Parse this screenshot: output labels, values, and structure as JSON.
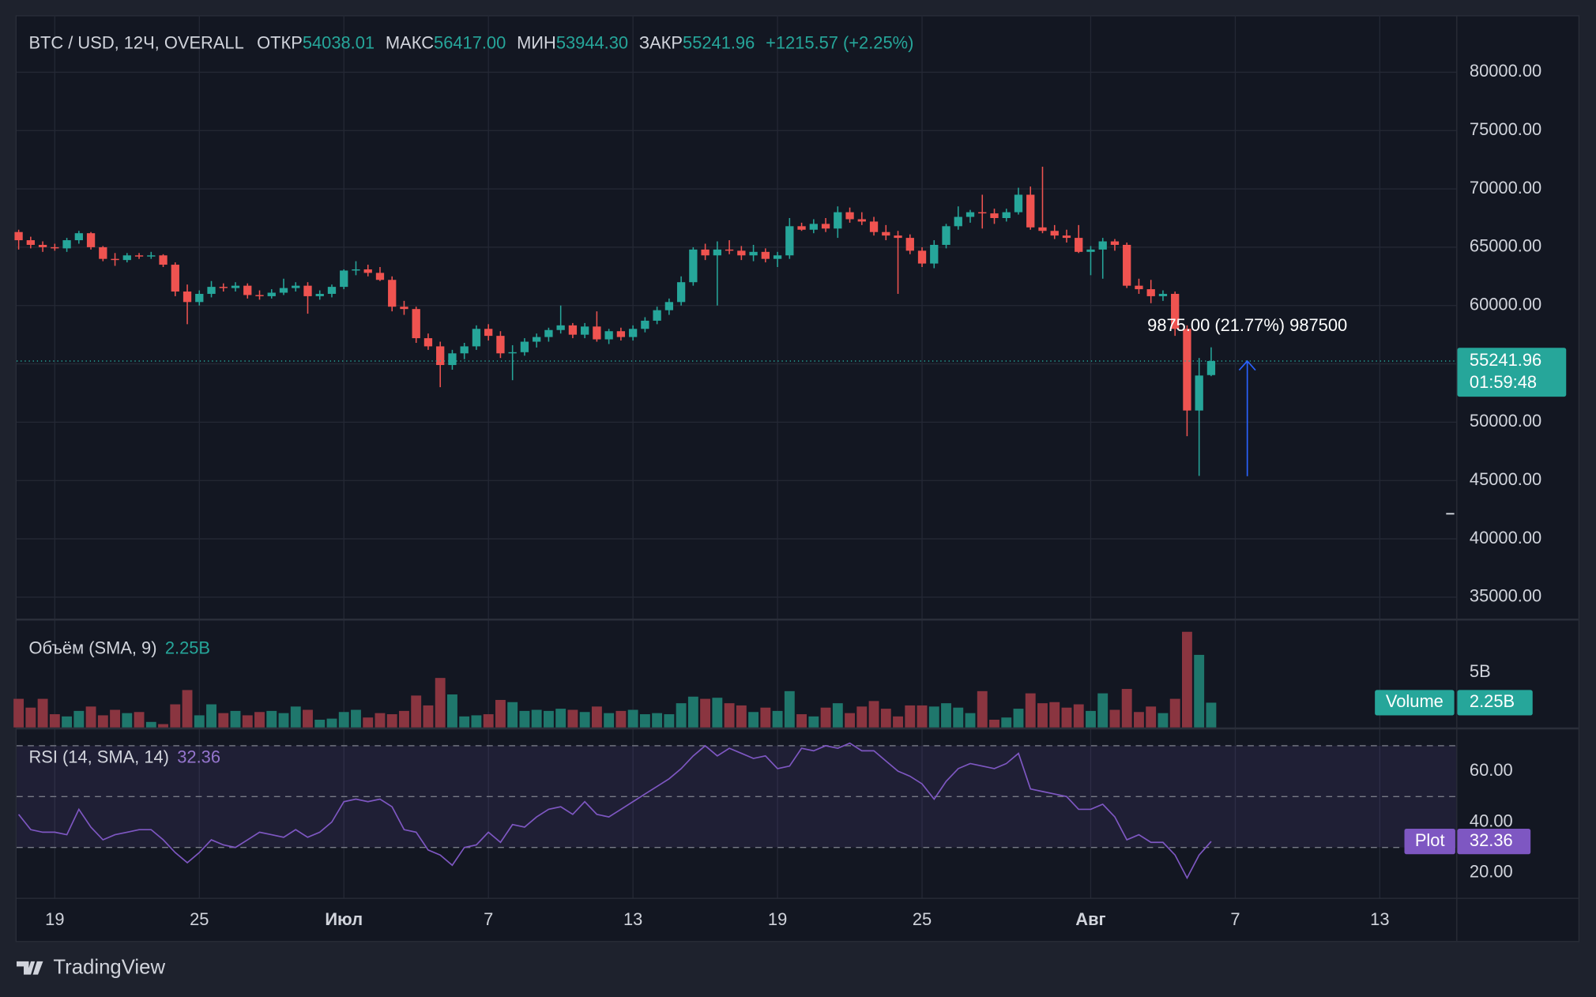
{
  "chart_data": [
    {
      "type": "candlestick",
      "header": {
        "symbol": "BTC / USD, 12Ч, OVERALL",
        "open_label": "ОТКР",
        "open": "54038.01",
        "high_label": "МАКС",
        "high": "56417.00",
        "low_label": "МИН",
        "low": "53944.30",
        "close_label": "ЗАКР",
        "close": "55241.96",
        "change": "+1215.57 (+2.25%)"
      },
      "up_color": "#26a69a",
      "down_color": "#ef5350",
      "open": [
        66300,
        65600,
        65200,
        65000,
        64900,
        65600,
        66200,
        65000,
        64000,
        63900,
        64300,
        64200,
        64300,
        63500,
        61200,
        60300,
        61000,
        61600,
        61500,
        61700,
        60900,
        60800,
        61100,
        61500,
        61700,
        60800,
        61000,
        61600,
        63000,
        63100,
        62800,
        62200,
        59900,
        59700,
        57200,
        56500,
        54900,
        55900,
        56500,
        58000,
        57400,
        55900,
        56000,
        56900,
        57300,
        57900,
        58300,
        57500,
        58200,
        57100,
        57800,
        57300,
        58000,
        58700,
        59600,
        60300,
        62000,
        64800,
        64300,
        64800,
        64700,
        64300,
        64600,
        64000,
        64300,
        66800,
        66500,
        67000,
        66600,
        68000,
        67400,
        67200,
        66300,
        66000,
        65800,
        64700,
        63600,
        65200,
        66800,
        67600,
        68000,
        67900,
        67500,
        68000,
        69500,
        66700,
        66400,
        66000,
        65800,
        64600,
        64800,
        65500,
        65200,
        61700,
        61400,
        60800,
        61000,
        58000,
        51000,
        54038.01
      ],
      "high": [
        66500,
        65900,
        65500,
        65300,
        65800,
        66400,
        66300,
        65100,
        64500,
        64500,
        64500,
        64600,
        64400,
        63700,
        61800,
        61300,
        62100,
        61900,
        62000,
        61900,
        61300,
        61400,
        62300,
        62000,
        62000,
        61300,
        61800,
        63100,
        63800,
        63500,
        63300,
        62500,
        60400,
        59900,
        57600,
        56900,
        56200,
        56800,
        58300,
        58400,
        57800,
        56600,
        57200,
        57600,
        58100,
        60000,
        58500,
        58500,
        59500,
        58000,
        58100,
        58300,
        59000,
        59900,
        60600,
        62500,
        65000,
        65300,
        65500,
        65600,
        65100,
        65200,
        64900,
        64600,
        67500,
        67100,
        67400,
        67500,
        68500,
        68400,
        68000,
        67600,
        66900,
        66400,
        66100,
        65000,
        65600,
        67000,
        68500,
        68200,
        69500,
        68300,
        68300,
        70100,
        70200,
        71900,
        66900,
        66500,
        66900,
        65100,
        65800,
        65700,
        65400,
        62300,
        62200,
        61300,
        61200,
        58300,
        55500,
        56417.0
      ],
      "low": [
        64800,
        64900,
        64600,
        64700,
        64600,
        65300,
        64800,
        63800,
        63400,
        63700,
        64000,
        64000,
        63300,
        60800,
        58400,
        60000,
        60700,
        61200,
        61200,
        60600,
        60500,
        60600,
        60900,
        61200,
        59300,
        60500,
        60700,
        61400,
        62600,
        62500,
        62100,
        59500,
        59200,
        56800,
        56200,
        53000,
        54500,
        55400,
        56200,
        57000,
        55500,
        53600,
        55700,
        56400,
        56900,
        57600,
        57200,
        57200,
        56900,
        56700,
        57000,
        57000,
        57700,
        58400,
        59200,
        60000,
        61700,
        63900,
        60000,
        64400,
        63900,
        63800,
        63700,
        63300,
        64000,
        66400,
        66200,
        66300,
        65800,
        67100,
        66900,
        66000,
        65600,
        61000,
        64400,
        63300,
        63200,
        64900,
        66500,
        67100,
        66600,
        67000,
        67200,
        67800,
        66500,
        66200,
        65700,
        65400,
        64500,
        62600,
        62300,
        64700,
        61500,
        61000,
        60200,
        60400,
        57400,
        48800,
        45400,
        53944.3
      ],
      "close": [
        65600,
        65200,
        65000,
        64900,
        65600,
        66200,
        65000,
        64000,
        63900,
        64300,
        64200,
        64300,
        63500,
        61200,
        60300,
        61000,
        61600,
        61500,
        61700,
        60900,
        60800,
        61100,
        61500,
        61700,
        60800,
        61000,
        61600,
        63000,
        63100,
        62800,
        62200,
        59900,
        59700,
        57200,
        56500,
        54900,
        55900,
        56500,
        58000,
        57400,
        55900,
        56000,
        56900,
        57300,
        57900,
        58300,
        57500,
        58200,
        57100,
        57800,
        57300,
        58000,
        58700,
        59600,
        60300,
        62000,
        64800,
        64300,
        64800,
        64700,
        64300,
        64600,
        64000,
        64300,
        66800,
        66500,
        67000,
        66600,
        68000,
        67400,
        67200,
        66300,
        66000,
        65800,
        64700,
        63600,
        65200,
        66800,
        67600,
        68000,
        67900,
        67500,
        68000,
        69500,
        66700,
        66400,
        66000,
        65800,
        64600,
        64800,
        65500,
        65200,
        61700,
        61400,
        60800,
        61000,
        58000,
        51000,
        54000,
        55241.96
      ],
      "xlim": [
        -0.17,
        119.35
      ],
      "xticks": [
        {
          "value": 3,
          "label": "19"
        },
        {
          "value": 15,
          "label": "25"
        },
        {
          "value": 27,
          "label": "Июл"
        },
        {
          "value": 39,
          "label": "7"
        },
        {
          "value": 51,
          "label": "13"
        },
        {
          "value": 63,
          "label": "19"
        },
        {
          "value": 75,
          "label": "25"
        },
        {
          "value": 89,
          "label": "Авг"
        },
        {
          "value": 101,
          "label": "7"
        },
        {
          "value": 113,
          "label": "13"
        }
      ],
      "ylim": [
        33166,
        84884
      ],
      "yticks": [
        {
          "value": 35000,
          "label": "35000.00"
        },
        {
          "value": 40000,
          "label": "40000.00"
        },
        {
          "value": 45000,
          "label": "45000.00"
        },
        {
          "value": 50000,
          "label": "50000.00"
        },
        {
          "value": 55000,
          "label": "55000.00"
        },
        {
          "value": 60000,
          "label": "60000.00"
        },
        {
          "value": 65000,
          "label": "65000.00"
        },
        {
          "value": 70000,
          "label": "70000.00"
        },
        {
          "value": 75000,
          "label": "75000.00"
        },
        {
          "value": 80000,
          "label": "80000.00"
        }
      ],
      "grid": true,
      "last_price_label": "55241.96",
      "countdown": "01:59:48",
      "measure": {
        "label": "9875.00 (21.77%) 987500",
        "x": 102,
        "from": 45366.96,
        "to": 55241.96,
        "color": "#2962ff"
      }
    },
    {
      "type": "bar",
      "title": "Объём (SMA, 9)",
      "current": "2.25B",
      "up_color": "#1f776c",
      "down_color": "#8a3540",
      "values": [
        2.6,
        1.8,
        2.6,
        1.2,
        1.0,
        1.5,
        1.9,
        1.1,
        1.6,
        1.3,
        1.4,
        0.5,
        0.3,
        2.1,
        3.4,
        1.1,
        2.1,
        1.3,
        1.5,
        1.1,
        1.4,
        1.5,
        1.3,
        1.9,
        1.6,
        0.7,
        0.8,
        1.4,
        1.6,
        0.9,
        1.3,
        1.2,
        1.5,
        2.9,
        2.0,
        4.5,
        3.0,
        1.0,
        1.1,
        1.2,
        2.5,
        2.3,
        1.5,
        1.6,
        1.5,
        1.7,
        1.6,
        1.4,
        1.9,
        1.3,
        1.5,
        1.6,
        1.2,
        1.3,
        1.2,
        2.2,
        2.8,
        2.6,
        2.7,
        2.2,
        2.0,
        1.4,
        1.8,
        1.5,
        3.3,
        1.2,
        1.0,
        1.8,
        2.2,
        1.3,
        1.9,
        2.4,
        1.7,
        1.0,
        2.0,
        2.0,
        1.9,
        2.2,
        1.8,
        1.3,
        3.3,
        0.7,
        0.9,
        1.7,
        3.1,
        2.2,
        2.3,
        1.8,
        2.1,
        1.5,
        3.1,
        1.6,
        3.5,
        1.4,
        1.9,
        1.3,
        2.6,
        8.7,
        6.6,
        2.25
      ],
      "ylim": [
        0,
        9.72
      ],
      "yticks": [
        {
          "value": 5,
          "label": "5B"
        }
      ],
      "badge_name": "Volume",
      "badge_value": "2.25B",
      "badge_color": "#26a69a"
    },
    {
      "type": "line",
      "title": "RSI (14, SMA, 14)",
      "current": "32.36",
      "color": "#7e57c2",
      "values": [
        43,
        37,
        36,
        36,
        35,
        45,
        38,
        33,
        35,
        36,
        37,
        37,
        33,
        28,
        24,
        28,
        33,
        31,
        30,
        33,
        36,
        35,
        34,
        37,
        34,
        36,
        40,
        48,
        49,
        48,
        49,
        46,
        37,
        36,
        29,
        27,
        23,
        30,
        31,
        36,
        32,
        39,
        38,
        42,
        45,
        46,
        43,
        48,
        43,
        42,
        45,
        48,
        51,
        54,
        57,
        61,
        66,
        70,
        66,
        69,
        67,
        65,
        66,
        61,
        62,
        69,
        68,
        70,
        69,
        71,
        68,
        68,
        64,
        60,
        58,
        55,
        49,
        56,
        61,
        63,
        62,
        61,
        63,
        67,
        53,
        52,
        51,
        50,
        45,
        45,
        47,
        42,
        33,
        35,
        32,
        32,
        27,
        18,
        27,
        32.36
      ],
      "ylim": [
        10.4,
        76.4
      ],
      "yticks": [
        {
          "value": 20,
          "label": "20.00"
        },
        {
          "value": 40,
          "label": "40.00"
        },
        {
          "value": 60,
          "label": "60.00"
        }
      ],
      "bands": [
        30,
        50,
        70
      ],
      "badge_name": "Plot",
      "badge_value": "32.36"
    }
  ],
  "footer": {
    "brand": "TradingView"
  }
}
